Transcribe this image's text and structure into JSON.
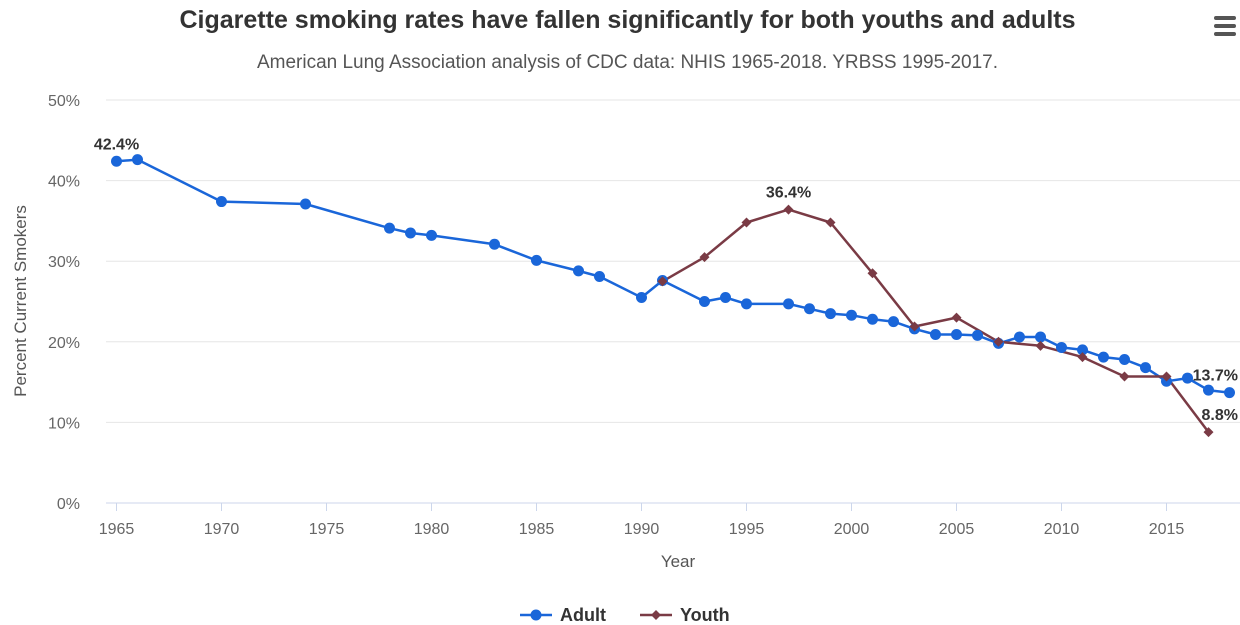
{
  "menu_icon": "hamburger-icon",
  "chart_data": {
    "type": "line",
    "title": "Cigarette smoking rates have fallen significantly for both youths and adults",
    "subtitle": "American Lung Association analysis of CDC data: NHIS 1965-2018. YRBSS 1995-2017.",
    "xlabel": "Year",
    "ylabel": "Percent Current Smokers",
    "xlim": [
      1964.5,
      2018.5
    ],
    "ylim": [
      0,
      50
    ],
    "xticks": [
      1965,
      1970,
      1975,
      1980,
      1985,
      1990,
      1995,
      2000,
      2005,
      2010,
      2015
    ],
    "yticks": [
      0,
      10,
      20,
      30,
      40,
      50
    ],
    "ytick_labels": [
      "0%",
      "10%",
      "20%",
      "30%",
      "40%",
      "50%"
    ],
    "grid": true,
    "legend_position": "bottom",
    "series": [
      {
        "name": "Adult",
        "color": "#1a66d9",
        "marker": "circle",
        "points": [
          [
            1965,
            42.4
          ],
          [
            1966,
            42.6
          ],
          [
            1970,
            37.4
          ],
          [
            1974,
            37.1
          ],
          [
            1978,
            34.1
          ],
          [
            1979,
            33.5
          ],
          [
            1980,
            33.2
          ],
          [
            1983,
            32.1
          ],
          [
            1985,
            30.1
          ],
          [
            1987,
            28.8
          ],
          [
            1988,
            28.1
          ],
          [
            1990,
            25.5
          ],
          [
            1991,
            27.6
          ],
          [
            1993,
            25.0
          ],
          [
            1994,
            25.5
          ],
          [
            1995,
            24.7
          ],
          [
            1997,
            24.7
          ],
          [
            1998,
            24.1
          ],
          [
            1999,
            23.5
          ],
          [
            2000,
            23.3
          ],
          [
            2001,
            22.8
          ],
          [
            2002,
            22.5
          ],
          [
            2003,
            21.6
          ],
          [
            2004,
            20.9
          ],
          [
            2005,
            20.9
          ],
          [
            2006,
            20.8
          ],
          [
            2007,
            19.8
          ],
          [
            2008,
            20.6
          ],
          [
            2009,
            20.6
          ],
          [
            2010,
            19.3
          ],
          [
            2011,
            19.0
          ],
          [
            2012,
            18.1
          ],
          [
            2013,
            17.8
          ],
          [
            2014,
            16.8
          ],
          [
            2015,
            15.1
          ],
          [
            2016,
            15.5
          ],
          [
            2017,
            14.0
          ],
          [
            2018,
            13.7
          ]
        ]
      },
      {
        "name": "Youth",
        "color": "#7a3b45",
        "marker": "diamond",
        "points": [
          [
            1991,
            27.5
          ],
          [
            1993,
            30.5
          ],
          [
            1995,
            34.8
          ],
          [
            1997,
            36.4
          ],
          [
            1999,
            34.8
          ],
          [
            2001,
            28.5
          ],
          [
            2003,
            21.9
          ],
          [
            2005,
            23.0
          ],
          [
            2007,
            20.0
          ],
          [
            2009,
            19.5
          ],
          [
            2011,
            18.1
          ],
          [
            2013,
            15.7
          ],
          [
            2015,
            15.7
          ],
          [
            2017,
            8.8
          ]
        ]
      }
    ],
    "annotations": [
      {
        "series": "Adult",
        "x": 1965,
        "y": 42.4,
        "text": "42.4%"
      },
      {
        "series": "Youth",
        "x": 1997,
        "y": 36.4,
        "text": "36.4%"
      },
      {
        "series": "Adult",
        "x": 2018,
        "y": 13.7,
        "text": "13.7%"
      },
      {
        "series": "Youth",
        "x": 2017,
        "y": 8.8,
        "text": "8.8%"
      }
    ]
  }
}
